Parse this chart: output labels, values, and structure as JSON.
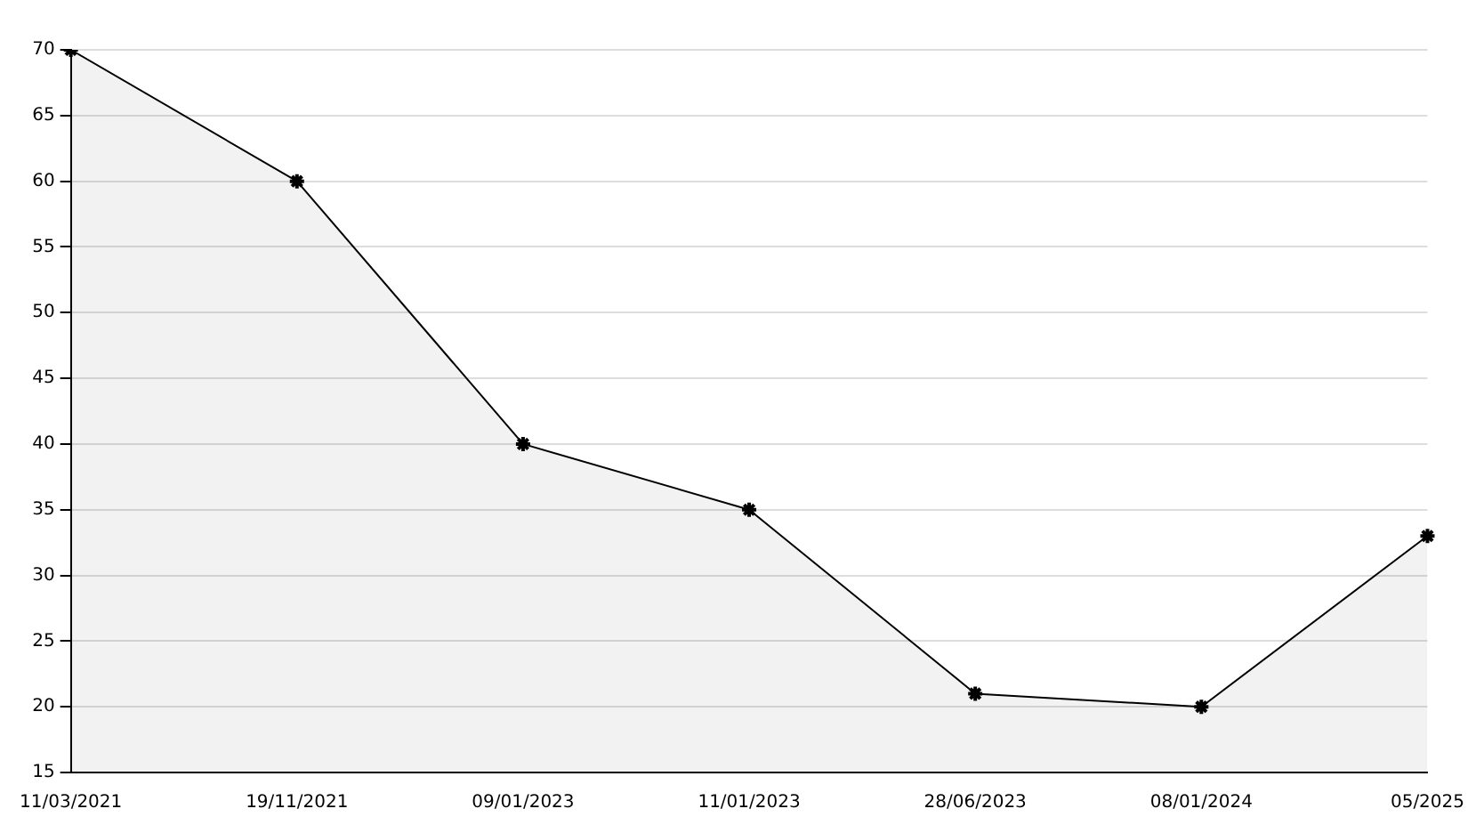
{
  "chart_data": {
    "type": "area",
    "categories": [
      "11/03/2021",
      "19/11/2021",
      "09/01/2023",
      "11/01/2023",
      "28/06/2023",
      "08/01/2024",
      "05/2025"
    ],
    "series": [
      {
        "color": "#000000",
        "values": [
          70,
          60,
          40,
          35,
          21,
          20,
          33
        ]
      }
    ],
    "ylim": [
      15,
      70
    ],
    "yticks": [
      15,
      20,
      25,
      30,
      35,
      40,
      45,
      50,
      55,
      60,
      65,
      70
    ],
    "grid": "y",
    "legend": false,
    "marker": "cross",
    "line_style": "solid"
  }
}
